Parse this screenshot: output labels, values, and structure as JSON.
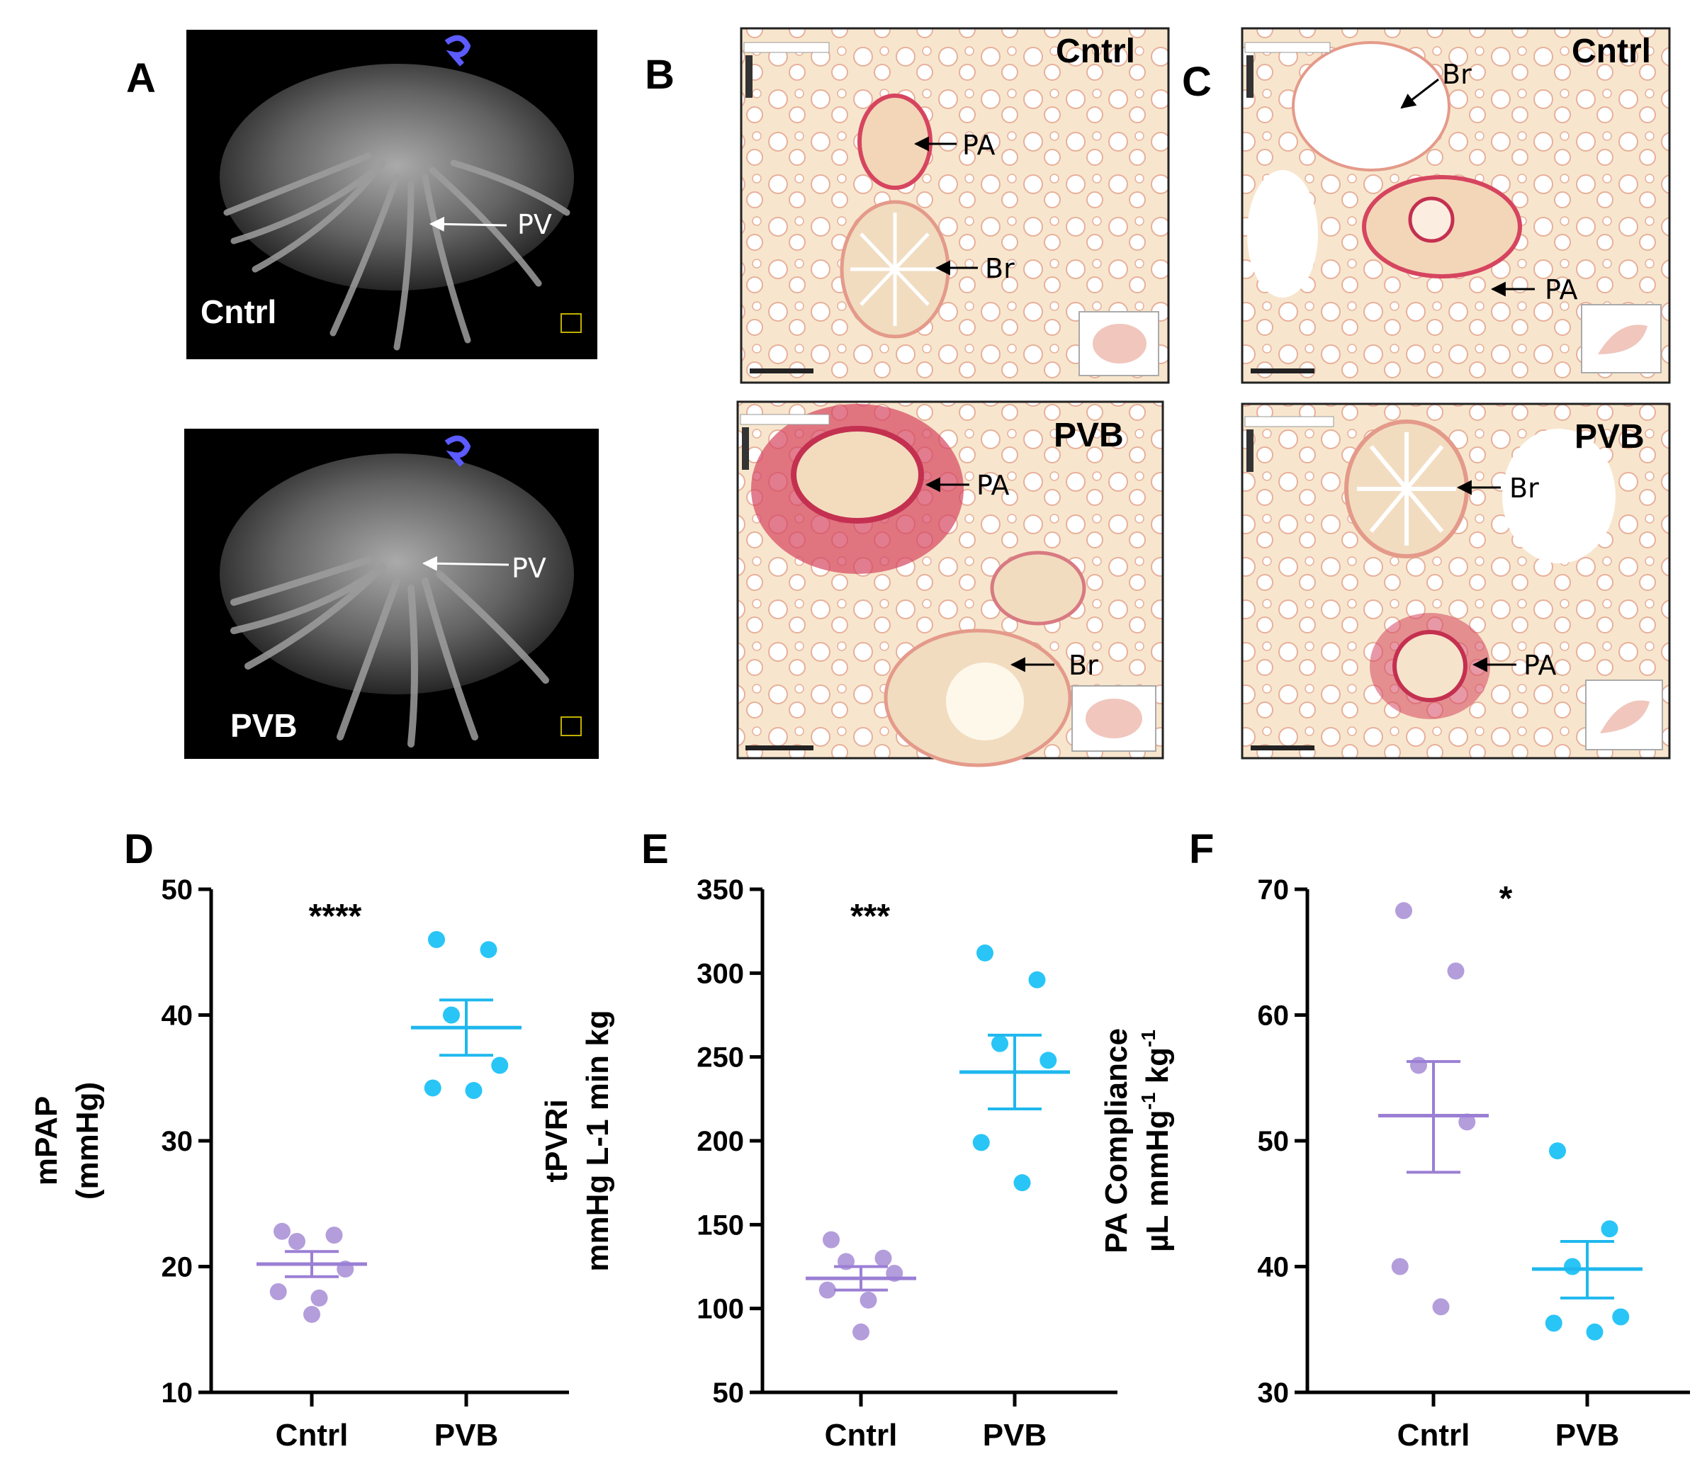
{
  "figure": {
    "panel_a": {
      "letter": "A",
      "top_label": "Cntrl",
      "bottom_label": "PVB",
      "arrow_label": "PV"
    },
    "panel_b": {
      "letter": "B",
      "top_title": "Cntrl",
      "bottom_title": "PVB",
      "top_arrows": [
        "PA",
        "Br"
      ],
      "bottom_arrows": [
        "PA",
        "Br"
      ]
    },
    "panel_c": {
      "letter": "C",
      "top_title": "Cntrl",
      "bottom_title": "PVB",
      "top_arrows": [
        "Br",
        "PA"
      ],
      "bottom_arrows": [
        "Br",
        "PA"
      ]
    },
    "colors": {
      "cntrl": "#b39ddb",
      "pvb": "#29c5f6",
      "cntrl_line": "#9b7fd4",
      "pvb_line": "#1fb8ee",
      "histo_bg": "#f6e5cc",
      "histo_stain": "#d6455f",
      "ct_bg": "#000000"
    },
    "icons": [
      "orientation-cube-icon"
    ]
  },
  "chart_data": [
    {
      "panel": "D",
      "type": "scatter",
      "categories": [
        "Cntrl",
        "PVB"
      ],
      "ylabel_lines": [
        "mPAP",
        "(mmHg)"
      ],
      "ylim": [
        10,
        50
      ],
      "yticks": [
        "10",
        "20",
        "30",
        "40",
        "50"
      ],
      "significance": "****",
      "series": [
        {
          "category": "Cntrl",
          "points": [
            22.8,
            22.5,
            22.0,
            19.8,
            18.0,
            17.5,
            16.2
          ],
          "mean": 20.2,
          "sem_low": 19.2,
          "sem_high": 21.2
        },
        {
          "category": "PVB",
          "points": [
            46.0,
            45.2,
            40.0,
            36.0,
            34.2,
            34.0
          ],
          "mean": 39.0,
          "sem_low": 36.8,
          "sem_high": 41.2
        }
      ]
    },
    {
      "panel": "E",
      "type": "scatter",
      "categories": [
        "Cntrl",
        "PVB"
      ],
      "ylabel_lines": [
        "tPVRi",
        "mmHg L-1 min kg"
      ],
      "ylim": [
        50,
        350
      ],
      "yticks": [
        "50",
        "100",
        "150",
        "200",
        "250",
        "300",
        "350"
      ],
      "significance": "***",
      "series": [
        {
          "category": "Cntrl",
          "points": [
            141,
            130,
            128,
            121,
            111,
            105,
            86
          ],
          "mean": 118,
          "sem_low": 111,
          "sem_high": 125
        },
        {
          "category": "PVB",
          "points": [
            312,
            296,
            258,
            248,
            199,
            175
          ],
          "mean": 241,
          "sem_low": 219,
          "sem_high": 263
        }
      ]
    },
    {
      "panel": "F",
      "type": "scatter",
      "categories": [
        "Cntrl",
        "PVB"
      ],
      "ylabel_lines": [
        "PA Compliance",
        "µL mmHg",
        "-1",
        " kg",
        "-1"
      ],
      "ylim": [
        30,
        70
      ],
      "yticks": [
        "30",
        "40",
        "50",
        "60",
        "70"
      ],
      "significance": "*",
      "series": [
        {
          "category": "Cntrl",
          "points": [
            68.3,
            63.5,
            56.0,
            51.5,
            40.0,
            36.8
          ],
          "mean": 52.0,
          "sem_low": 47.5,
          "sem_high": 56.3
        },
        {
          "category": "PVB",
          "points": [
            49.2,
            43.0,
            40.0,
            36.0,
            35.5,
            34.8
          ],
          "mean": 39.8,
          "sem_low": 37.5,
          "sem_high": 42.0
        }
      ]
    }
  ]
}
